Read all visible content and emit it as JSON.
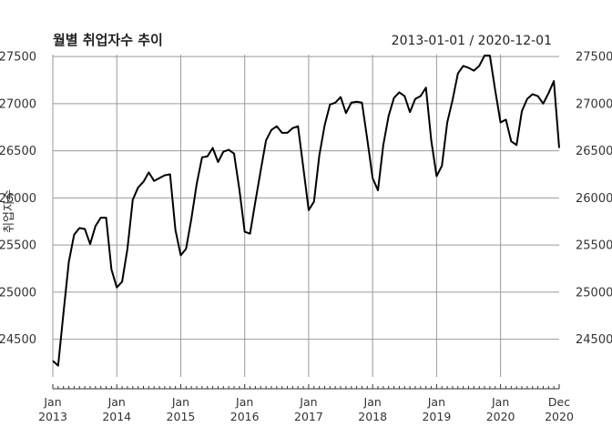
{
  "title": "월별 취업자수 추이",
  "date_range": "2013-01-01 / 2020-12-01",
  "chart_data": {
    "type": "line",
    "title": "월별 취업자수 추이",
    "subtitle": "2013-01-01 / 2020-12-01",
    "ylabel": "취업자수",
    "xlabel": "",
    "ylim": [
      24100,
      27520
    ],
    "yticks": [
      24500,
      25000,
      25500,
      26000,
      26500,
      27000,
      27500
    ],
    "ytick_labels": [
      "24500",
      "25000",
      "25500",
      "26000",
      "26500",
      "27000",
      "27500"
    ],
    "xticks": [
      {
        "month": "Jan",
        "year": "2013",
        "x": "2013-01"
      },
      {
        "month": "Jan",
        "year": "2014",
        "x": "2014-01"
      },
      {
        "month": "Jan",
        "year": "2015",
        "x": "2015-01"
      },
      {
        "month": "Jan",
        "year": "2016",
        "x": "2016-01"
      },
      {
        "month": "Jan",
        "year": "2017",
        "x": "2017-01"
      },
      {
        "month": "Jan",
        "year": "2018",
        "x": "2018-01"
      },
      {
        "month": "Jan",
        "year": "2019",
        "x": "2019-01"
      },
      {
        "month": "Jan",
        "year": "2020",
        "x": "2020-01"
      },
      {
        "month": "Dec",
        "year": "2020",
        "x": "2020-12"
      }
    ],
    "grid": true,
    "right_axis": true,
    "x_start": "2013-01",
    "x_end": "2020-12",
    "series": [
      {
        "values": [
          24270,
          24220,
          24780,
          25320,
          25610,
          25680,
          25670,
          25510,
          25700,
          25790,
          25790,
          25240,
          25050,
          25110,
          25460,
          25980,
          26110,
          26170,
          26270,
          26180,
          26210,
          26240,
          26250,
          25660,
          25390,
          25460,
          25780,
          26150,
          26430,
          26440,
          26530,
          26380,
          26490,
          26510,
          26470,
          26090,
          25640,
          25620,
          25960,
          26290,
          26610,
          26720,
          26760,
          26690,
          26690,
          26740,
          26760,
          26320,
          25870,
          25960,
          26450,
          26770,
          26990,
          27010,
          27070,
          26900,
          27010,
          27020,
          27010,
          26620,
          26210,
          26080,
          26560,
          26870,
          27060,
          27120,
          27080,
          26910,
          27050,
          27080,
          27170,
          26610,
          26230,
          26340,
          26800,
          27040,
          27320,
          27400,
          27380,
          27350,
          27400,
          27510,
          27510,
          27140,
          26800,
          26830,
          26600,
          26560,
          26920,
          27050,
          27100,
          27080,
          27000,
          27110,
          27240,
          26530
        ]
      }
    ]
  }
}
